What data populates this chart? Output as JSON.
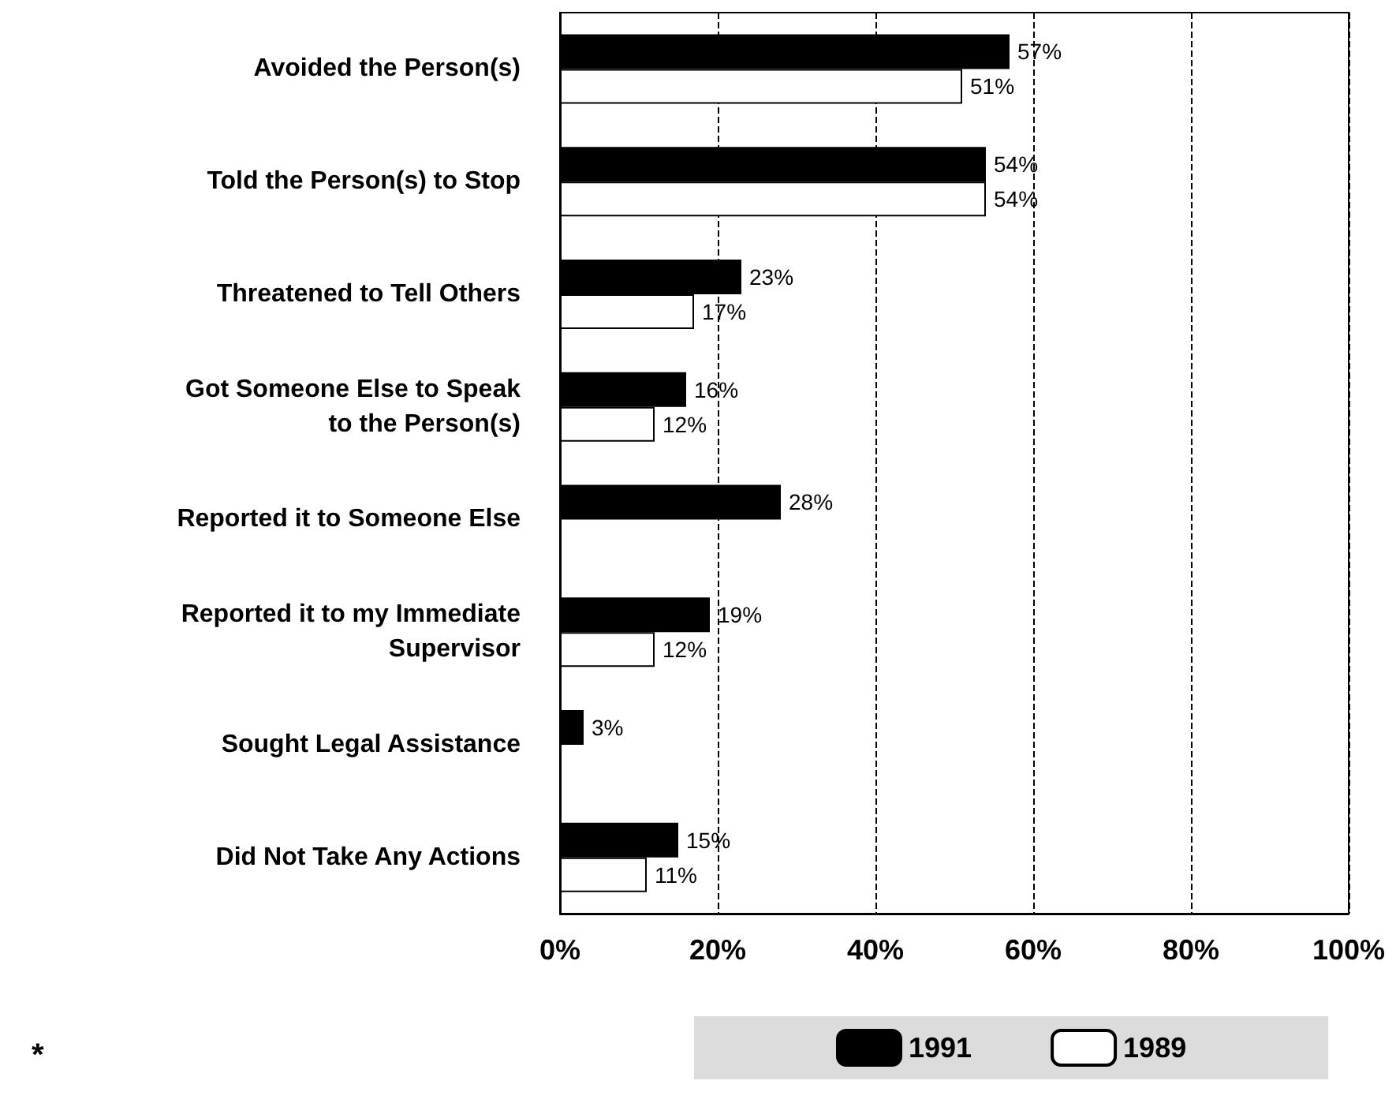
{
  "chart_data": {
    "type": "bar",
    "orientation": "horizontal",
    "categories": [
      "Avoided the Person(s)",
      "Told the Person(s) to Stop",
      "Threatened to Tell Others",
      "Got Someone Else to Speak\nto the Person(s)",
      "Reported it to Someone Else",
      "Reported it to my Immediate\nSupervisor",
      "Sought Legal Assistance",
      "Did Not Take Any Actions"
    ],
    "series": [
      {
        "name": "1991",
        "color": "#000000",
        "values": [
          57,
          54,
          23,
          16,
          28,
          19,
          3,
          15
        ],
        "value_labels": [
          "57%",
          "54%",
          "23%",
          "16%",
          "28%",
          "19%",
          "3%",
          "15%"
        ]
      },
      {
        "name": "1989",
        "color": "#ffffff",
        "values": [
          51,
          54,
          17,
          12,
          null,
          12,
          null,
          11
        ],
        "value_labels": [
          "51%",
          "54%",
          "17%",
          "12%",
          null,
          "12%",
          null,
          "11%"
        ]
      }
    ],
    "annotations": [
      "*"
    ],
    "xlim": [
      0,
      100
    ],
    "xticks": [
      {
        "value": 0,
        "label": "0%"
      },
      {
        "value": 20,
        "label": "20%"
      },
      {
        "value": 40,
        "label": "40%"
      },
      {
        "value": 60,
        "label": "60%"
      },
      {
        "value": 80,
        "label": "80%"
      },
      {
        "value": 100,
        "label": "100%"
      }
    ],
    "grid": "x",
    "legend": "bottom"
  }
}
